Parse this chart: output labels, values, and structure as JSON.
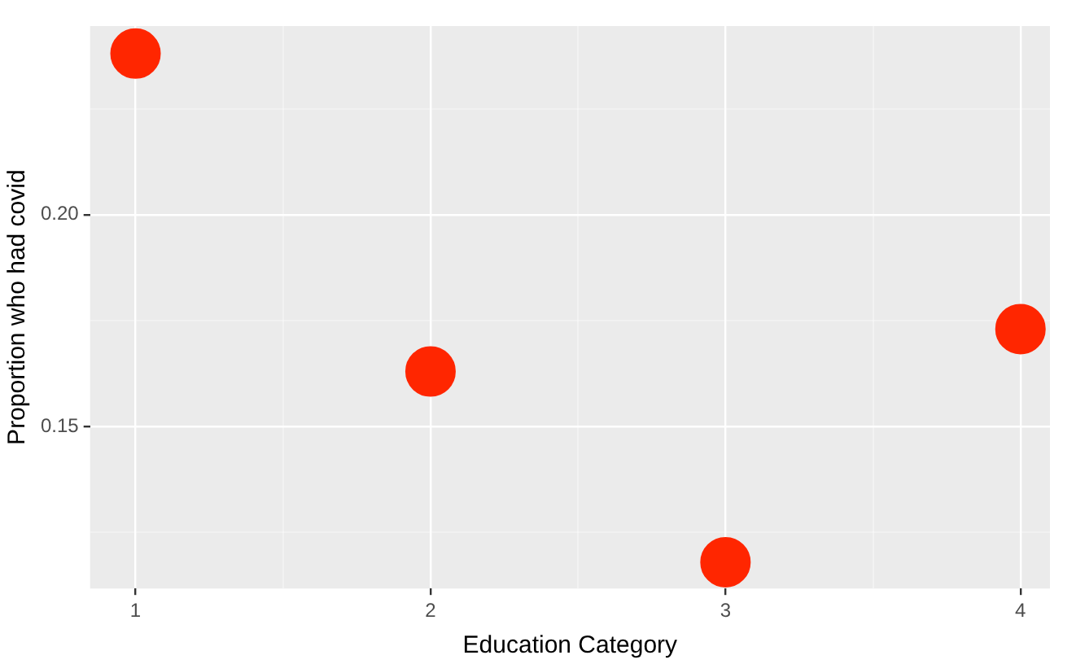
{
  "chart_data": {
    "type": "scatter",
    "xlabel": "Education Category",
    "ylabel": "Proportion who had covid",
    "x": [
      1,
      2,
      3,
      4
    ],
    "series": [
      {
        "color": "#ff2600",
        "values": [
          0.238,
          0.163,
          0.118,
          0.173
        ]
      }
    ],
    "xlim": [
      0.846,
      4.1
    ],
    "ylim": [
      0.1118,
      0.2445
    ],
    "xticks": [
      1,
      {
        "value": 1.5,
        "label": null
      },
      2,
      {
        "value": 2.5,
        "label": null
      },
      3,
      {
        "value": 3.5,
        "label": null
      },
      4
    ],
    "yticks": [
      {
        "value": 0.125,
        "label": null
      },
      {
        "value": 0.15,
        "label": "0.15"
      },
      {
        "value": 0.175,
        "label": null
      },
      {
        "value": 0.2,
        "label": "0.20"
      },
      {
        "value": 0.225,
        "label": null
      }
    ],
    "grid": true,
    "legend": false,
    "marker": "circle"
  }
}
